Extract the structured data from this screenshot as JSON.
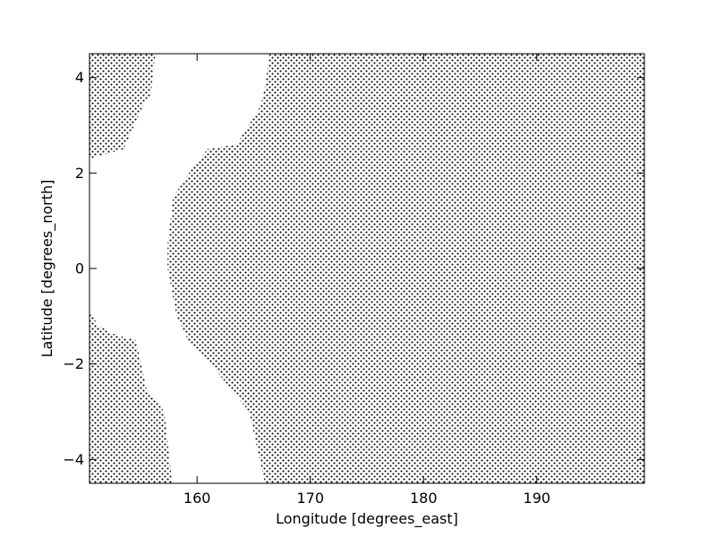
{
  "chart_data": {
    "type": "contour",
    "title": "",
    "xlabel": "Longitude [degrees_east]",
    "ylabel": "Latitude [degrees_north]",
    "xlim": [
      150.5,
      199.5
    ],
    "ylim": [
      -4.5,
      4.5
    ],
    "x_ticks": [
      {
        "value": 160,
        "label": "160"
      },
      {
        "value": 170,
        "label": "170"
      },
      {
        "value": 180,
        "label": "180"
      },
      {
        "value": 190,
        "label": "190"
      }
    ],
    "y_ticks": [
      {
        "value": 4,
        "label": "4"
      },
      {
        "value": 2,
        "label": "2"
      },
      {
        "value": 0,
        "label": "0"
      },
      {
        "value": -2,
        "label": "−2"
      },
      {
        "value": -4,
        "label": "−4"
      }
    ],
    "hatch": "dots",
    "hatch_color": "#000000",
    "grid": false,
    "hatched_regions": [
      {
        "name": "",
        "polygon": [
          [
            150.5,
            4.5
          ],
          [
            156.3,
            4.5
          ],
          [
            155.9,
            3.6
          ],
          [
            155.2,
            3.4
          ],
          [
            153.5,
            2.5
          ],
          [
            150.5,
            2.3
          ]
        ]
      },
      {
        "name": "",
        "polygon": [
          [
            166.4,
            4.5
          ],
          [
            199.5,
            4.5
          ],
          [
            199.5,
            -4.5
          ],
          [
            166.0,
            -4.5
          ],
          [
            164.6,
            -3.0
          ],
          [
            162.9,
            -2.5
          ],
          [
            161.2,
            -2.0
          ],
          [
            159.2,
            -1.5
          ],
          [
            158.2,
            -1.0
          ],
          [
            157.4,
            0.0
          ],
          [
            157.4,
            0.5
          ],
          [
            157.9,
            1.5
          ],
          [
            159.3,
            2.0
          ],
          [
            160.9,
            2.5
          ],
          [
            163.5,
            2.6
          ],
          [
            165.6,
            3.4
          ],
          [
            166.0,
            3.8
          ]
        ]
      },
      {
        "name": "",
        "polygon": [
          [
            150.5,
            -0.9
          ],
          [
            151.3,
            -1.2
          ],
          [
            152.9,
            -1.4
          ],
          [
            154.6,
            -1.5
          ],
          [
            155.5,
            -2.5
          ],
          [
            157.1,
            -3.0
          ],
          [
            157.8,
            -4.5
          ],
          [
            150.5,
            -4.5
          ]
        ]
      }
    ]
  }
}
